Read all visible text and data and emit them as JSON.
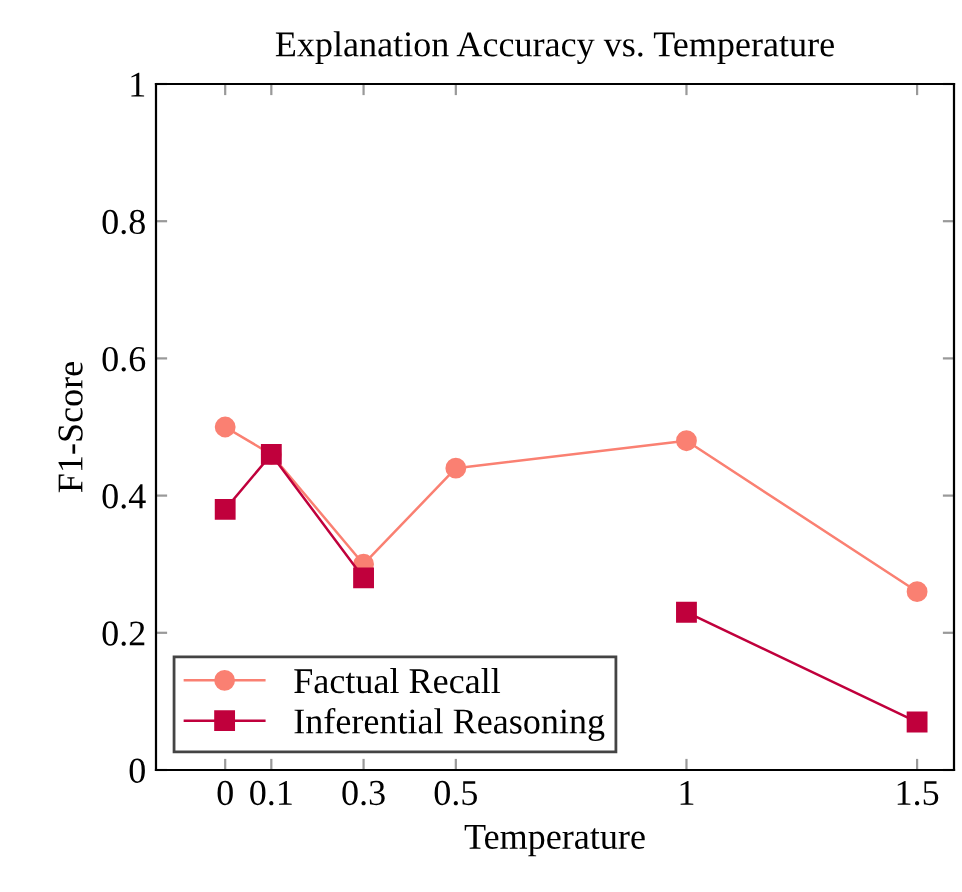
{
  "chart_data": {
    "type": "line",
    "title": "Explanation Accuracy vs. Temperature",
    "xlabel": "Temperature",
    "ylabel": "F1-Score",
    "x": [
      0,
      0.1,
      0.3,
      0.5,
      1,
      1.5
    ],
    "series": [
      {
        "name": "Factual Recall",
        "color": "#fa8072",
        "marker": "circle",
        "values": [
          0.5,
          0.46,
          0.3,
          0.44,
          0.48,
          0.26
        ]
      },
      {
        "name": "Inferential Reasoning",
        "color": "#c0003c",
        "marker": "square",
        "values": [
          0.38,
          0.46,
          0.28,
          null,
          0.23,
          0.07
        ]
      }
    ],
    "xlim": [
      -0.15,
      1.58
    ],
    "xticks": [
      0,
      0.1,
      0.3,
      0.5,
      1,
      1.5
    ],
    "ylim": [
      0,
      1
    ],
    "yticks": [
      0,
      0.2,
      0.4,
      0.6,
      0.8,
      1
    ],
    "grid": false,
    "legend": "bottom left",
    "line_style": "solid"
  }
}
